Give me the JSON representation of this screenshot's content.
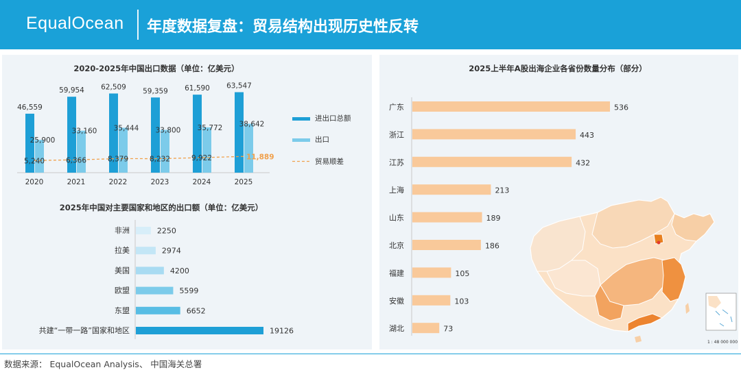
{
  "header": {
    "logo": "EqualOcean",
    "title": "年度数据复盘：贸易结构出现历史性反转"
  },
  "footer": {
    "source": "数据来源： EqualOcean Analysis、 中国海关总署"
  },
  "map": {
    "scale": "1 : 48 000 000"
  },
  "colors": {
    "total": "#1e9fd6",
    "export": "#7ccbea",
    "balance": "#f0a04b",
    "province_bar": "#f9c99a",
    "header": "#1aa1d8"
  },
  "chart_data": [
    {
      "type": "bar",
      "title": "2020-2025年中国出口数据（单位：亿美元）",
      "categories": [
        "2020",
        "2021",
        "2022",
        "2023",
        "2024",
        "2025"
      ],
      "series": [
        {
          "name": "进出口总额",
          "values": [
            46559,
            59954,
            62509,
            59359,
            61590,
            63547
          ]
        },
        {
          "name": "出口",
          "values": [
            25900,
            33160,
            35444,
            33800,
            35772,
            38642
          ]
        },
        {
          "name": "贸易顺差",
          "values": [
            5240,
            6366,
            8379,
            8232,
            9922,
            11889
          ]
        }
      ],
      "value_labels": [
        [
          "46,559",
          "59,954",
          "62,509",
          "59,359",
          "61,590",
          "63,547"
        ],
        [
          "25,900",
          "33,160",
          "35,444",
          "33,800",
          "35,772",
          "38,642"
        ],
        [
          "5,240",
          "6,366",
          "8,379",
          "8,232",
          "9,922",
          "11,889"
        ]
      ],
      "ylim": [
        0,
        66000
      ],
      "legend": "right",
      "grid": false
    },
    {
      "type": "bar",
      "orientation": "horizontal",
      "title": "2025年中国对主要国家和地区的出口额（单位：亿美元）",
      "categories": [
        "非洲",
        "拉美",
        "美国",
        "欧盟",
        "东盟",
        "共建“一带一路”国家和地区"
      ],
      "values": [
        2250,
        2974,
        4200,
        5599,
        6652,
        19126
      ],
      "xlim": [
        0,
        19126
      ],
      "grid": false
    },
    {
      "type": "bar",
      "orientation": "horizontal",
      "title": "2025上半年A股出海企业各省份数量分布（部分）",
      "categories": [
        "广东",
        "浙江",
        "江苏",
        "上海",
        "山东",
        "北京",
        "福建",
        "安徽",
        "湖北"
      ],
      "values": [
        536,
        443,
        432,
        213,
        189,
        186,
        105,
        103,
        73
      ],
      "xlim": [
        0,
        536
      ],
      "grid": false
    }
  ]
}
